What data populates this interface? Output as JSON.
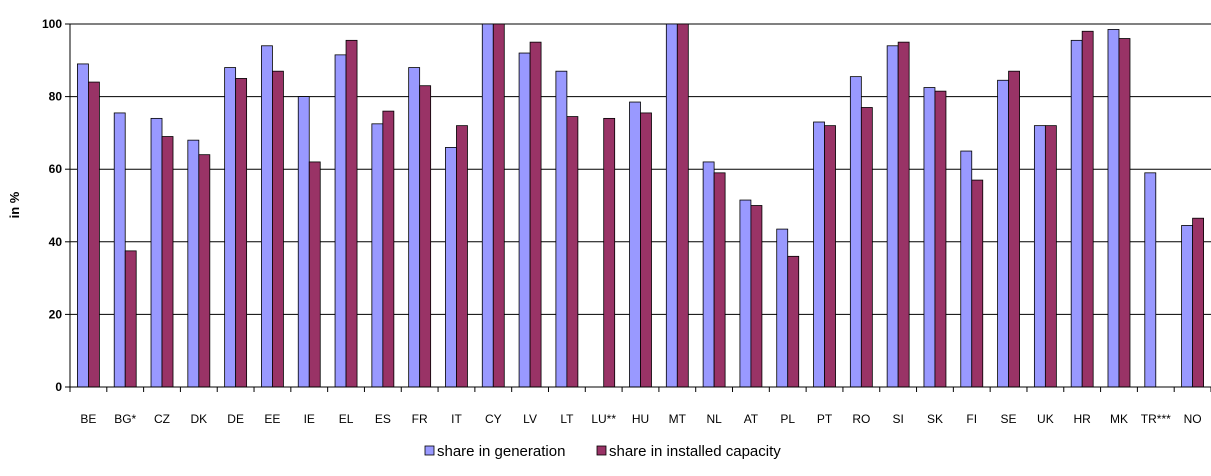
{
  "chart_data": {
    "type": "bar",
    "ylabel": "in %",
    "ylim": [
      0,
      100
    ],
    "yticks": [
      0,
      20,
      40,
      60,
      80,
      100
    ],
    "grid": true,
    "legend_position": "bottom",
    "categories": [
      "BE",
      "BG*",
      "CZ",
      "DK",
      "DE",
      "EE",
      "IE",
      "EL",
      "ES",
      "FR",
      "IT",
      "CY",
      "LV",
      "LT",
      "LU**",
      "HU",
      "MT",
      "NL",
      "AT",
      "PL",
      "PT",
      "RO",
      "SI",
      "SK",
      "FI",
      "SE",
      "UK",
      "HR",
      "MK",
      "TR***",
      "NO"
    ],
    "series": [
      {
        "name": "share in generation",
        "color": "#9999ff",
        "values": [
          89,
          75.5,
          74,
          68,
          88,
          94,
          80,
          91.5,
          72.5,
          88,
          66,
          100,
          92,
          87,
          null,
          78.5,
          100,
          62,
          51.5,
          43.5,
          73,
          85.5,
          94,
          82.5,
          65,
          84.5,
          72,
          95.5,
          98.5,
          59,
          44.5
        ]
      },
      {
        "name": "share in installed capacity",
        "color": "#993366",
        "values": [
          84,
          37.5,
          69,
          64,
          85,
          87,
          62,
          95.5,
          76,
          83,
          72,
          100,
          95,
          74.5,
          74,
          75.5,
          100,
          59,
          50,
          36,
          72,
          77,
          95,
          81.5,
          57,
          87,
          72,
          98,
          96,
          null,
          46.5
        ]
      }
    ]
  }
}
